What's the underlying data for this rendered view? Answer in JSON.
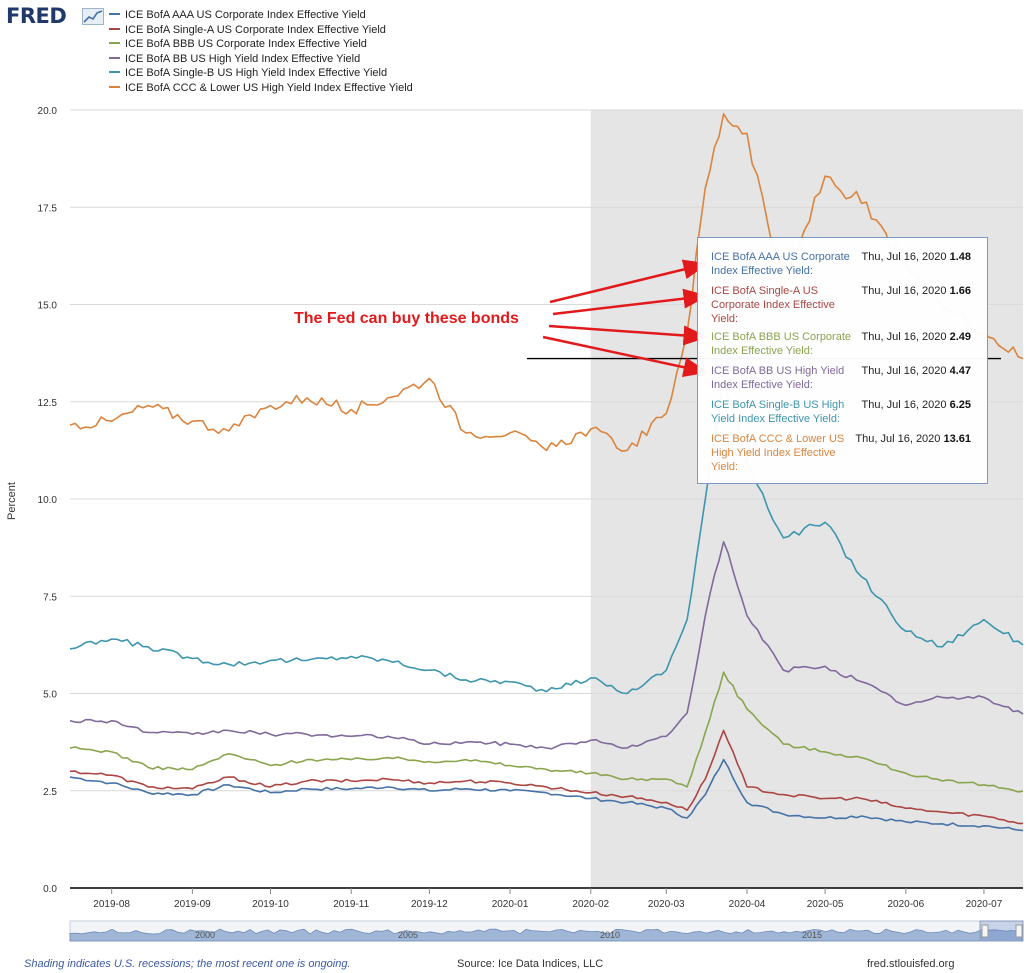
{
  "logo": {
    "text": "FRED"
  },
  "legend": [
    {
      "label": "ICE BofA AAA US Corporate Index Effective Yield",
      "color": "#4572a7"
    },
    {
      "label": "ICE BofA Single-A US Corporate Index Effective Yield",
      "color": "#aa4643"
    },
    {
      "label": "ICE BofA BBB US Corporate Index Effective Yield",
      "color": "#89a54e"
    },
    {
      "label": "ICE BofA BB US High Yield Index Effective Yield",
      "color": "#80699b"
    },
    {
      "label": "ICE BofA Single-B US High Yield Index Effective Yield",
      "color": "#3d96ae"
    },
    {
      "label": "ICE BofA CCC & Lower US High Yield Index Effective Yield",
      "color": "#db843d"
    }
  ],
  "tooltip": {
    "rows": [
      {
        "name": "ICE BofA AAA US Corporate Index Effective Yield:",
        "date": "Thu, Jul 16, 2020",
        "value": "1.48",
        "color": "#4572a7"
      },
      {
        "name": "ICE BofA Single-A US Corporate Index Effective Yield:",
        "date": "Thu, Jul 16, 2020",
        "value": "1.66",
        "color": "#aa4643"
      },
      {
        "name": "ICE BofA BBB US Corporate Index Effective Yield:",
        "date": "Thu, Jul 16, 2020",
        "value": "2.49",
        "color": "#89a54e"
      },
      {
        "name": "ICE BofA BB US High Yield Index Effective Yield:",
        "date": "Thu, Jul 16, 2020",
        "value": "4.47",
        "color": "#80699b"
      },
      {
        "name": "ICE BofA Single-B US High Yield Index Effective Yield:",
        "date": "Thu, Jul 16, 2020",
        "value": "6.25",
        "color": "#3d96ae"
      },
      {
        "name": "ICE BofA CCC & Lower US High Yield Index Effective Yield:",
        "date": "Thu, Jul 16, 2020",
        "value": "13.61",
        "color": "#db843d"
      }
    ]
  },
  "annotation": {
    "text": "The Fed can buy these bonds",
    "color": "#e31a1c"
  },
  "footer": {
    "note": "Shading indicates U.S. recessions; the most recent one is ongoing.",
    "source": "Source: Ice Data Indices, LLC",
    "site": "fred.stlouisfed.org"
  },
  "chart_data": {
    "type": "line",
    "ylabel": "Percent",
    "xlabel": "",
    "ylim": [
      0,
      20
    ],
    "yticks": [
      "0.0",
      "2.5",
      "5.0",
      "7.5",
      "10.0",
      "12.5",
      "15.0",
      "17.5",
      "20.0"
    ],
    "xlim": [
      "2019-07-16",
      "2020-07-16"
    ],
    "xticks": [
      {
        "label": "2019-08",
        "date": "2019-08-01"
      },
      {
        "label": "2019-09",
        "date": "2019-09-01"
      },
      {
        "label": "2019-10",
        "date": "2019-10-01"
      },
      {
        "label": "2019-11",
        "date": "2019-11-01"
      },
      {
        "label": "2019-12",
        "date": "2019-12-01"
      },
      {
        "label": "2020-01",
        "date": "2020-01-01"
      },
      {
        "label": "2020-02",
        "date": "2020-02-01"
      },
      {
        "label": "2020-03",
        "date": "2020-03-01"
      },
      {
        "label": "2020-04",
        "date": "2020-04-01"
      },
      {
        "label": "2020-05",
        "date": "2020-05-01"
      },
      {
        "label": "2020-06",
        "date": "2020-06-01"
      },
      {
        "label": "2020-07",
        "date": "2020-07-01"
      }
    ],
    "recession": {
      "start": "2020-02-01",
      "end": "2020-07-16",
      "shade": "#e5e5e5"
    },
    "reference_line_value": 13.61,
    "navigator_labels": [
      "2000",
      "2005",
      "2010",
      "2015"
    ],
    "series": [
      {
        "name": "ICE BofA AAA US Corporate Index Effective Yield",
        "color": "#4572a7",
        "x": [
          "2019-07-16",
          "2019-08-01",
          "2019-08-15",
          "2019-09-01",
          "2019-09-15",
          "2019-10-01",
          "2019-10-15",
          "2019-11-01",
          "2019-11-15",
          "2019-12-01",
          "2019-12-15",
          "2020-01-01",
          "2020-01-15",
          "2020-02-01",
          "2020-02-15",
          "2020-03-01",
          "2020-03-09",
          "2020-03-16",
          "2020-03-23",
          "2020-04-01",
          "2020-04-15",
          "2020-05-01",
          "2020-05-15",
          "2020-06-01",
          "2020-06-15",
          "2020-07-01",
          "2020-07-16"
        ],
        "y": [
          2.85,
          2.7,
          2.45,
          2.4,
          2.65,
          2.45,
          2.55,
          2.55,
          2.6,
          2.5,
          2.55,
          2.5,
          2.45,
          2.3,
          2.2,
          2.05,
          1.8,
          2.4,
          3.3,
          2.2,
          1.9,
          1.8,
          1.85,
          1.7,
          1.65,
          1.6,
          1.48
        ]
      },
      {
        "name": "ICE BofA Single-A US Corporate Index Effective Yield",
        "color": "#aa4643",
        "x": [
          "2019-07-16",
          "2019-08-01",
          "2019-08-15",
          "2019-09-01",
          "2019-09-15",
          "2019-10-01",
          "2019-10-15",
          "2019-11-01",
          "2019-11-15",
          "2019-12-01",
          "2019-12-15",
          "2020-01-01",
          "2020-01-15",
          "2020-02-01",
          "2020-02-15",
          "2020-03-01",
          "2020-03-09",
          "2020-03-16",
          "2020-03-23",
          "2020-04-01",
          "2020-04-15",
          "2020-05-01",
          "2020-05-15",
          "2020-06-01",
          "2020-06-15",
          "2020-07-01",
          "2020-07-16"
        ],
        "y": [
          3.0,
          2.9,
          2.6,
          2.55,
          2.85,
          2.6,
          2.75,
          2.75,
          2.8,
          2.7,
          2.75,
          2.7,
          2.6,
          2.45,
          2.35,
          2.2,
          2.0,
          2.8,
          4.05,
          2.6,
          2.4,
          2.3,
          2.3,
          2.05,
          1.95,
          1.85,
          1.66
        ]
      },
      {
        "name": "ICE BofA BBB US Corporate Index Effective Yield",
        "color": "#89a54e",
        "x": [
          "2019-07-16",
          "2019-08-01",
          "2019-08-15",
          "2019-09-01",
          "2019-09-15",
          "2019-10-01",
          "2019-10-15",
          "2019-11-01",
          "2019-11-15",
          "2019-12-01",
          "2019-12-15",
          "2020-01-01",
          "2020-01-15",
          "2020-02-01",
          "2020-02-15",
          "2020-03-01",
          "2020-03-09",
          "2020-03-16",
          "2020-03-23",
          "2020-04-01",
          "2020-04-15",
          "2020-05-01",
          "2020-05-15",
          "2020-06-01",
          "2020-06-15",
          "2020-07-01",
          "2020-07-16"
        ],
        "y": [
          3.6,
          3.5,
          3.1,
          3.05,
          3.45,
          3.15,
          3.3,
          3.3,
          3.35,
          3.25,
          3.3,
          3.15,
          3.05,
          2.95,
          2.8,
          2.8,
          2.6,
          4.0,
          5.55,
          4.6,
          3.7,
          3.5,
          3.35,
          2.95,
          2.75,
          2.65,
          2.49
        ]
      },
      {
        "name": "ICE BofA BB US High Yield Index Effective Yield",
        "color": "#80699b",
        "x": [
          "2019-07-16",
          "2019-08-01",
          "2019-08-15",
          "2019-09-01",
          "2019-09-15",
          "2019-10-01",
          "2019-10-15",
          "2019-11-01",
          "2019-11-15",
          "2019-12-01",
          "2019-12-15",
          "2020-01-01",
          "2020-01-15",
          "2020-02-01",
          "2020-02-15",
          "2020-03-01",
          "2020-03-09",
          "2020-03-16",
          "2020-03-23",
          "2020-04-01",
          "2020-04-15",
          "2020-05-01",
          "2020-05-15",
          "2020-06-01",
          "2020-06-15",
          "2020-07-01",
          "2020-07-16"
        ],
        "y": [
          4.3,
          4.3,
          4.0,
          3.95,
          4.05,
          3.95,
          3.95,
          3.9,
          3.9,
          3.7,
          3.75,
          3.7,
          3.6,
          3.8,
          3.6,
          3.9,
          4.5,
          7.0,
          8.9,
          7.0,
          5.6,
          5.7,
          5.3,
          4.7,
          4.9,
          4.9,
          4.47
        ]
      },
      {
        "name": "ICE BofA Single-B US High Yield Index Effective Yield",
        "color": "#3d96ae",
        "x": [
          "2019-07-16",
          "2019-08-01",
          "2019-08-15",
          "2019-09-01",
          "2019-09-15",
          "2019-10-01",
          "2019-10-15",
          "2019-11-01",
          "2019-11-15",
          "2019-12-01",
          "2019-12-15",
          "2020-01-01",
          "2020-01-15",
          "2020-02-01",
          "2020-02-15",
          "2020-03-01",
          "2020-03-09",
          "2020-03-16",
          "2020-03-23",
          "2020-04-01",
          "2020-04-15",
          "2020-05-01",
          "2020-05-15",
          "2020-06-01",
          "2020-06-15",
          "2020-07-01",
          "2020-07-16"
        ],
        "y": [
          6.15,
          6.4,
          6.2,
          5.9,
          5.75,
          5.85,
          5.85,
          5.95,
          5.85,
          5.6,
          5.35,
          5.3,
          5.05,
          5.4,
          5.0,
          5.6,
          6.9,
          10.0,
          13.0,
          11.0,
          9.0,
          9.4,
          8.0,
          6.6,
          6.2,
          6.9,
          6.25
        ]
      },
      {
        "name": "ICE BofA CCC & Lower US High Yield Index Effective Yield",
        "color": "#db843d",
        "x": [
          "2019-07-16",
          "2019-08-01",
          "2019-08-15",
          "2019-09-01",
          "2019-09-15",
          "2019-10-01",
          "2019-10-15",
          "2019-11-01",
          "2019-11-15",
          "2019-12-01",
          "2019-12-15",
          "2020-01-01",
          "2020-01-15",
          "2020-02-01",
          "2020-02-15",
          "2020-03-01",
          "2020-03-09",
          "2020-03-16",
          "2020-03-23",
          "2020-04-01",
          "2020-04-15",
          "2020-05-01",
          "2020-05-15",
          "2020-06-01",
          "2020-06-15",
          "2020-07-01",
          "2020-07-16"
        ],
        "y": [
          11.9,
          12.0,
          12.4,
          12.0,
          11.75,
          12.4,
          12.6,
          12.3,
          12.6,
          13.1,
          11.7,
          11.7,
          11.25,
          11.8,
          11.25,
          12.2,
          14.3,
          18.0,
          19.9,
          19.4,
          15.4,
          18.3,
          17.6,
          16.0,
          15.0,
          14.3,
          13.61
        ]
      }
    ]
  }
}
